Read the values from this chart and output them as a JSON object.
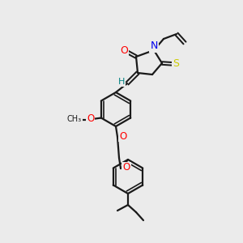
{
  "background_color": "#ebebeb",
  "line_color": "#1a1a1a",
  "bond_width": 1.6,
  "figsize": [
    3.0,
    3.0
  ],
  "dpi": 100,
  "colors": {
    "O": "#ff0000",
    "N": "#0000ee",
    "S_thioxo": "#cccc00",
    "S_ring": "#1a1a1a",
    "H": "#008080",
    "C": "#1a1a1a"
  }
}
